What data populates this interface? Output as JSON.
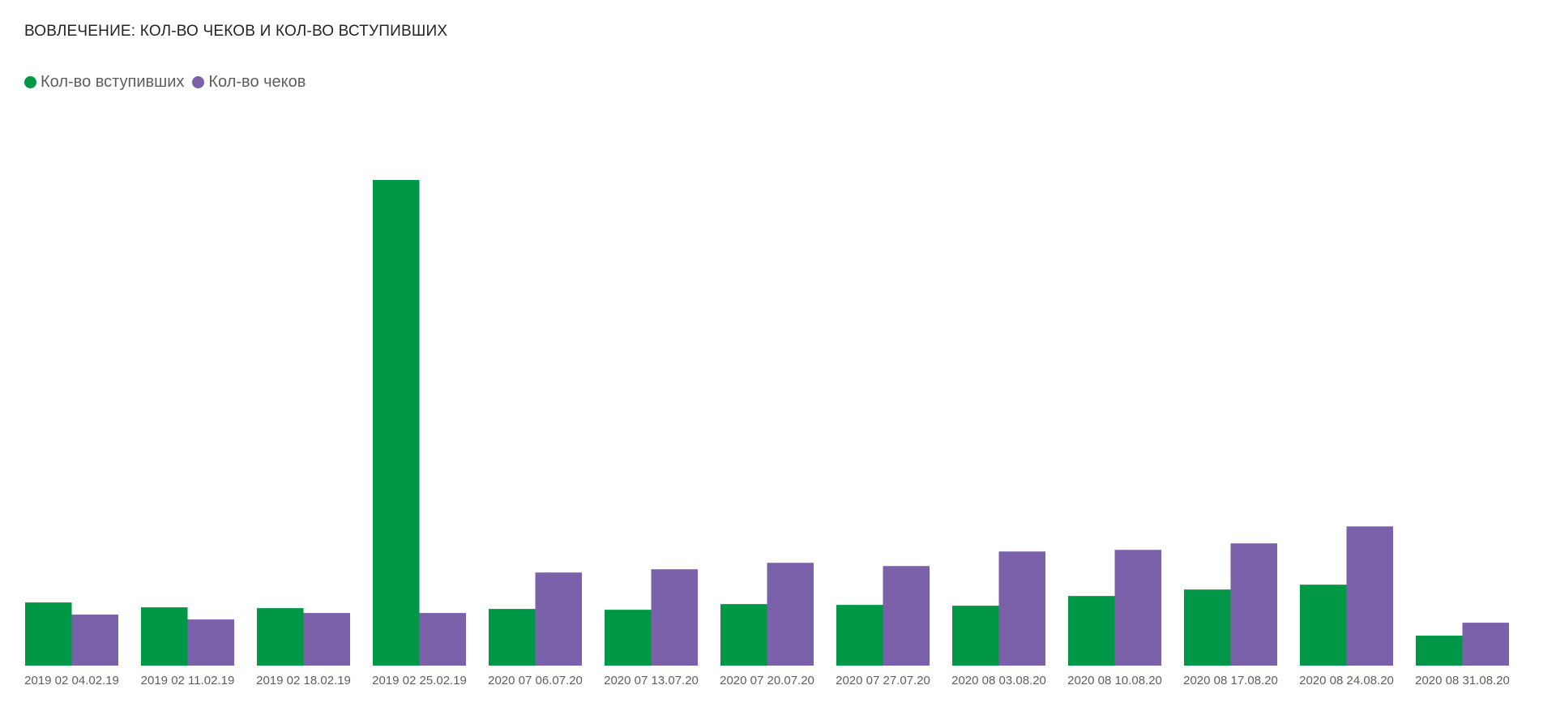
{
  "chart_data": {
    "type": "bar",
    "title": "ВОВЛЕЧЕНИЕ: КОЛ-ВО ЧЕКОВ И КОЛ-ВО ВСТУПИВШИХ",
    "xlabel": "",
    "ylabel": "",
    "grid": false,
    "legend_position": "top-left",
    "categories": [
      "2019 02 04.02.19",
      "2019 02 11.02.19",
      "2019 02 18.02.19",
      "2019 02 25.02.19",
      "2020 07 06.07.20",
      "2020 07 13.07.20",
      "2020 07 20.07.20",
      "2020 07 27.07.20",
      "2020 08 03.08.20",
      "2020 08 10.08.20",
      "2020 08 17.08.20",
      "2020 08 24.08.20",
      "2020 08 31.08.20"
    ],
    "series": [
      {
        "name": "Кол-во вступивших",
        "color": "#009846",
        "values": [
          78,
          72,
          71,
          600,
          70,
          69,
          76,
          75,
          74,
          86,
          94,
          100,
          37
        ]
      },
      {
        "name": "Кол-во чеков",
        "color": "#7b61aa",
        "values": [
          63,
          57,
          65,
          65,
          115,
          119,
          127,
          123,
          141,
          143,
          151,
          172,
          53
        ]
      }
    ]
  }
}
